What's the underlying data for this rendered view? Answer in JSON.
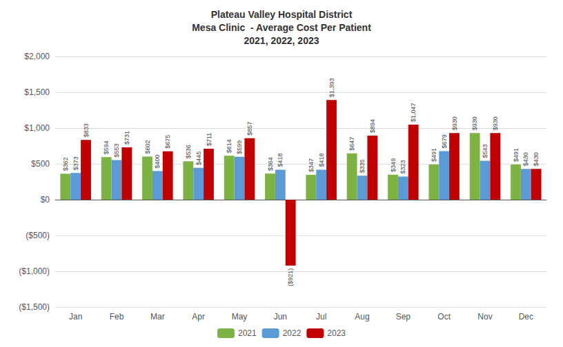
{
  "chart_data": {
    "type": "bar",
    "title": "Plateau Valley Hospital District\nMesa Clinic  - Average Cost Per Patient\n2021, 2022, 2023",
    "categories": [
      "Jan",
      "Feb",
      "Mar",
      "Apr",
      "May",
      "Jun",
      "Jul",
      "Aug",
      "Sep",
      "Oct",
      "Nov",
      "Dec"
    ],
    "series": [
      {
        "name": "2021",
        "color": "#7CB342",
        "values": [
          362,
          594,
          602,
          536,
          614,
          364,
          347,
          647,
          349,
          491,
          930,
          491
        ],
        "value_labels": [
          "$362",
          "$594",
          "$602",
          "$536",
          "$614",
          "$364",
          "$347",
          "$647",
          "$349",
          "$491",
          "$930",
          "$491"
        ]
      },
      {
        "name": "2022",
        "color": "#5B9BD5",
        "values": [
          373,
          553,
          400,
          445,
          599,
          418,
          418,
          335,
          323,
          679,
          543,
          430
        ],
        "value_labels": [
          "$373",
          "$553",
          "$400",
          "$445",
          "$599",
          "$418",
          "$418",
          "$335",
          "$323",
          "$679",
          "$543",
          "$430"
        ]
      },
      {
        "name": "2023",
        "color": "#C00000",
        "values": [
          833,
          731,
          675,
          711,
          857,
          -921,
          1393,
          894,
          1047,
          930,
          930,
          430
        ],
        "value_labels": [
          "$833",
          "$731",
          "$675",
          "$711",
          "$857",
          "($921)",
          "$1,393",
          "$894",
          "$1,047",
          "$930",
          "$930",
          "$430"
        ]
      }
    ],
    "ylim": [
      -1500,
      2000
    ],
    "yticks": [
      {
        "value": -1500,
        "label": "($1,500)"
      },
      {
        "value": -1000,
        "label": "($1,000)"
      },
      {
        "value": -500,
        "label": "($500)"
      },
      {
        "value": 0,
        "label": "$0"
      },
      {
        "value": 500,
        "label": "$500"
      },
      {
        "value": 1000,
        "label": "$1,000"
      },
      {
        "value": 1500,
        "label": "$1,500"
      },
      {
        "value": 2000,
        "label": "$2,000"
      }
    ],
    "grid": true,
    "legend": "bottom",
    "data_labels": true
  }
}
